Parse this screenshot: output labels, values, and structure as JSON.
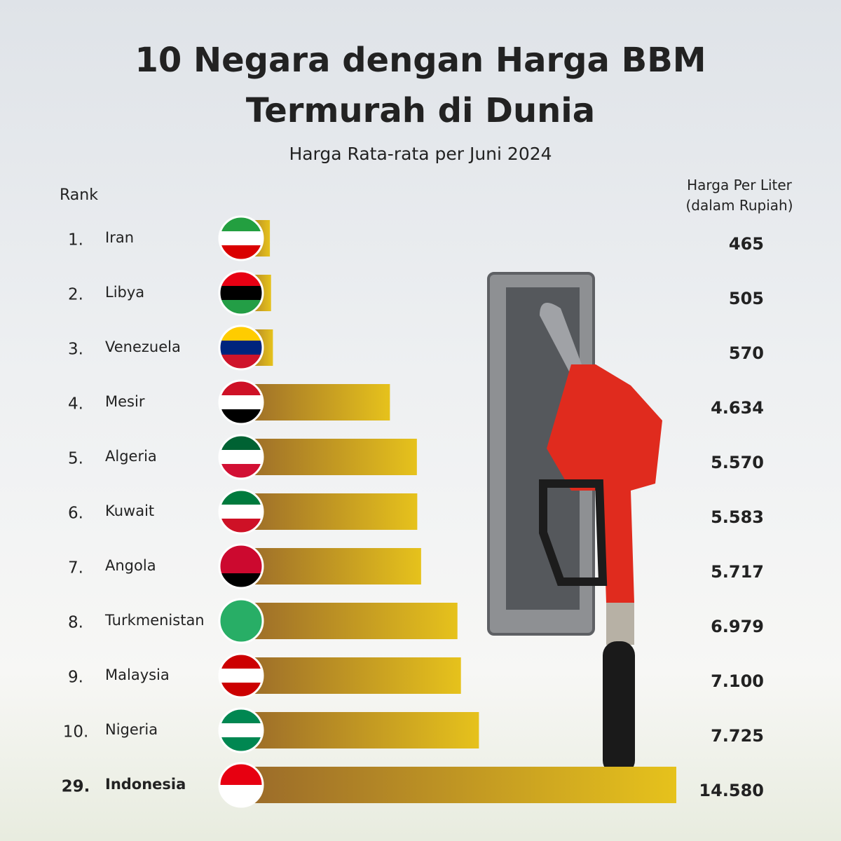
{
  "chart_data": {
    "type": "bar",
    "orientation": "horizontal",
    "title": "10 Negara dengan Harga BBM Termurah di Dunia",
    "subtitle": "Harga Rata-rata per Juni 2024",
    "rank_header": "Rank",
    "value_header": "Harga Per Liter (dalam Rupiah)",
    "ranks": [
      "1.",
      "2.",
      "3.",
      "4.",
      "5.",
      "6.",
      "7.",
      "8.",
      "9.",
      "10.",
      "29."
    ],
    "categories": [
      "Iran",
      "Libya",
      "Venezuela",
      "Mesir",
      "Algeria",
      "Kuwait",
      "Angola",
      "Turkmenistan",
      "Malaysia",
      "Nigeria",
      "Indonesia"
    ],
    "values": [
      465,
      505,
      570,
      4634,
      5570,
      5583,
      5717,
      6979,
      7100,
      7725,
      14580
    ],
    "value_labels": [
      "465",
      "505",
      "570",
      "4.634",
      "5.570",
      "5.583",
      "5.717",
      "6.979",
      "7.100",
      "7.725",
      "14.580"
    ],
    "color": [
      "#9a6a2a",
      "#e6c21c"
    ],
    "highlight": "Indonesia"
  }
}
